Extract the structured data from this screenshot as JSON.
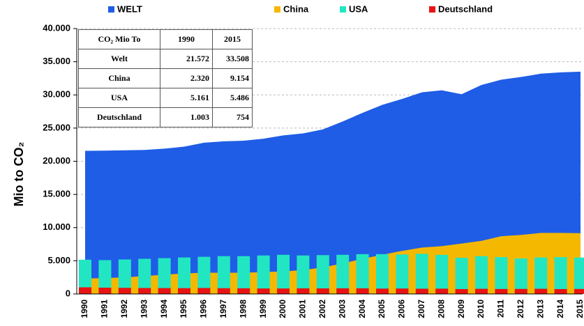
{
  "chart_data": {
    "type": "area",
    "y_label": "Mio to CO₂",
    "categories": [
      "1990",
      "1991",
      "1992",
      "1993",
      "1994",
      "1995",
      "1996",
      "1997",
      "1998",
      "1999",
      "2000",
      "2001",
      "2002",
      "2003",
      "2004",
      "2005",
      "2006",
      "2007",
      "2008",
      "2009",
      "2010",
      "2011",
      "2012",
      "2013",
      "2014",
      "2015"
    ],
    "series": [
      {
        "name": "WELT",
        "type": "area",
        "color": "#1f5de6",
        "values": [
          21572,
          21600,
          21650,
          21700,
          21900,
          22200,
          22800,
          23000,
          23100,
          23400,
          23900,
          24200,
          24800,
          26000,
          27300,
          28500,
          29400,
          30400,
          30700,
          30100,
          31500,
          32300,
          32700,
          33200,
          33400,
          33508
        ]
      },
      {
        "name": "China",
        "type": "area",
        "color": "#f5b800",
        "values": [
          2320,
          2400,
          2500,
          2700,
          2900,
          3100,
          3200,
          3200,
          3200,
          3300,
          3400,
          3600,
          4000,
          4600,
          5300,
          5900,
          6500,
          7000,
          7200,
          7600,
          8000,
          8700,
          8900,
          9200,
          9200,
          9154
        ]
      },
      {
        "name": "USA",
        "type": "bar",
        "color": "#22e6c2",
        "values": [
          5161,
          5100,
          5200,
          5300,
          5400,
          5500,
          5600,
          5700,
          5700,
          5800,
          5900,
          5800,
          5850,
          5900,
          6000,
          6000,
          5950,
          6050,
          5900,
          5450,
          5700,
          5550,
          5350,
          5500,
          5550,
          5486
        ]
      },
      {
        "name": "Deutschland",
        "type": "bar",
        "color": "#e81414",
        "values": [
          1003,
          950,
          920,
          900,
          890,
          880,
          900,
          870,
          860,
          830,
          830,
          850,
          840,
          850,
          850,
          810,
          820,
          790,
          800,
          740,
          780,
          750,
          760,
          780,
          740,
          754
        ]
      }
    ],
    "ylim": [
      0,
      40000
    ],
    "yticks": [
      0,
      {
        "value": 5000,
        "label": "5.000"
      },
      {
        "value": 10000,
        "label": "10.000"
      },
      {
        "value": 15000,
        "label": "15.000"
      },
      {
        "value": 20000,
        "label": "20.000"
      },
      {
        "value": 25000,
        "label": "25.000"
      },
      {
        "value": 30000,
        "label": "30.000"
      },
      {
        "value": 35000,
        "label": "35.000"
      },
      {
        "value": 40000,
        "label": "40.000"
      }
    ],
    "grid": true,
    "legend": "top"
  },
  "table": {
    "header": [
      "CO₂ Mio To",
      "1990",
      "2015"
    ],
    "rows": [
      [
        "Welt",
        "21.572",
        "33.508"
      ],
      [
        "China",
        "2.320",
        "9.154"
      ],
      [
        "USA",
        "5.161",
        "5.486"
      ],
      [
        "Deutschland",
        "1.003",
        "754"
      ]
    ]
  }
}
